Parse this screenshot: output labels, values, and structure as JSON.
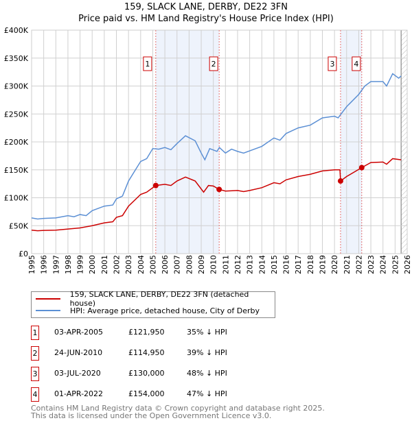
{
  "chart_data": {
    "type": "line",
    "title": "159, SLACK LANE, DERBY, DE22 3FN",
    "subtitle": "Price paid vs. HM Land Registry's House Price Index (HPI)",
    "xlim": [
      1995,
      2026
    ],
    "ylim": [
      0,
      400000
    ],
    "y_ticks": [
      {
        "v": 0,
        "label": "£0"
      },
      {
        "v": 50000,
        "label": "£50K"
      },
      {
        "v": 100000,
        "label": "£100K"
      },
      {
        "v": 150000,
        "label": "£150K"
      },
      {
        "v": 200000,
        "label": "£200K"
      },
      {
        "v": 250000,
        "label": "£250K"
      },
      {
        "v": 300000,
        "label": "£300K"
      },
      {
        "v": 350000,
        "label": "£350K"
      },
      {
        "v": 400000,
        "label": "£400K"
      }
    ],
    "x_ticks": [
      "1995",
      "1996",
      "1997",
      "1998",
      "1999",
      "2000",
      "2001",
      "2002",
      "2003",
      "2004",
      "2005",
      "2006",
      "2007",
      "2008",
      "2009",
      "2010",
      "2011",
      "2012",
      "2013",
      "2014",
      "2015",
      "2016",
      "2017",
      "2018",
      "2019",
      "2020",
      "2021",
      "2022",
      "2023",
      "2024",
      "2025",
      "2026"
    ],
    "grid": true,
    "shaded_periods": [
      [
        2005.25,
        2010.48
      ],
      [
        2020.5,
        2022.25
      ]
    ],
    "forecast_hatch_from": 2025.5,
    "series": [
      {
        "name": "159, SLACK LANE, DERBY, DE22 3FN (detached house)",
        "color": "#cc0000",
        "x": [
          1995,
          1995.5,
          1996,
          1997,
          1998,
          1999,
          2000,
          2001,
          2001.7,
          2002,
          2002.5,
          2003,
          2004,
          2004.5,
          2005.25,
          2006,
          2006.5,
          2007,
          2007.7,
          2008.5,
          2009.2,
          2009.6,
          2010,
          2010.48,
          2011,
          2012,
          2012.5,
          2013,
          2014,
          2015,
          2015.5,
          2016,
          2017,
          2018,
          2019,
          2020,
          2020.45,
          2020.5,
          2021,
          2022.25,
          2023,
          2024,
          2024.3,
          2024.8,
          2025.5
        ],
        "y": [
          42000,
          41000,
          41500,
          42000,
          44000,
          46000,
          50000,
          55000,
          57000,
          65000,
          68000,
          85000,
          106000,
          110000,
          121950,
          124000,
          122000,
          130000,
          137000,
          130000,
          110000,
          122000,
          121000,
          114950,
          112000,
          113000,
          111000,
          113000,
          118000,
          127000,
          125000,
          132000,
          138000,
          142000,
          148000,
          150000,
          150000,
          130000,
          138000,
          154000,
          163000,
          164000,
          160000,
          170000,
          168000
        ]
      },
      {
        "name": "HPI: Average price, detached house, City of Derby",
        "color": "#5b8fd4",
        "x": [
          1995,
          1995.5,
          1996,
          1997,
          1998,
          1998.5,
          1999,
          1999.5,
          2000,
          2001,
          2001.7,
          2002,
          2002.5,
          2003,
          2004,
          2004.5,
          2005,
          2005.5,
          2006,
          2006.5,
          2007,
          2007.7,
          2008.5,
          2009,
          2009.3,
          2009.7,
          2010.3,
          2010.5,
          2011,
          2011.5,
          2012,
          2012.5,
          2013,
          2014,
          2015,
          2015.5,
          2016,
          2017,
          2018,
          2019,
          2020,
          2020.3,
          2021,
          2022,
          2022.5,
          2023,
          2024,
          2024.3,
          2024.8,
          2025.3,
          2025.5
        ],
        "y": [
          64000,
          62000,
          63000,
          64000,
          68000,
          66000,
          70000,
          68000,
          77000,
          85000,
          87000,
          98000,
          103000,
          130000,
          165000,
          170000,
          188000,
          187000,
          190000,
          186000,
          197000,
          211000,
          202000,
          180000,
          168000,
          188000,
          183000,
          190000,
          180000,
          187000,
          183000,
          180000,
          184000,
          192000,
          207000,
          203000,
          215000,
          225000,
          230000,
          243000,
          246000,
          243000,
          263000,
          285000,
          300000,
          308000,
          308000,
          300000,
          322000,
          314000,
          318000
        ]
      }
    ],
    "sales": [
      {
        "n": "1",
        "x": 2005.25,
        "y": 121950,
        "date": "03-APR-2005",
        "price": "£121,950",
        "hpi": "35% ↓ HPI"
      },
      {
        "n": "2",
        "x": 2010.48,
        "y": 114950,
        "date": "24-JUN-2010",
        "price": "£114,950",
        "hpi": "39% ↓ HPI"
      },
      {
        "n": "3",
        "x": 2020.5,
        "y": 130000,
        "date": "03-JUL-2020",
        "price": "£130,000",
        "hpi": "48% ↓ HPI"
      },
      {
        "n": "4",
        "x": 2022.25,
        "y": 154000,
        "date": "01-APR-2022",
        "price": "£154,000",
        "hpi": "47% ↓ HPI"
      }
    ]
  },
  "footer": {
    "line1": "Contains HM Land Registry data © Crown copyright and database right 2025.",
    "line2": "This data is licensed under the Open Government Licence v3.0."
  }
}
